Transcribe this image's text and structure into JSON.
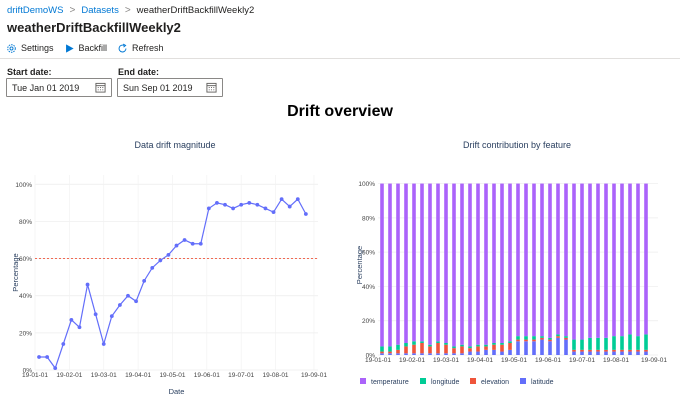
{
  "breadcrumb": {
    "items": [
      "driftDemoWS",
      "Datasets",
      "weatherDriftBackfillWeekly2"
    ],
    "separator": ">"
  },
  "page": {
    "title": "weatherDriftBackfillWeekly2"
  },
  "toolbar": {
    "settings_label": "Settings",
    "backfill_label": "Backfill",
    "refresh_label": "Refresh"
  },
  "filters": {
    "start_label": "Start date:",
    "start_value": "Tue Jan 01 2019",
    "end_label": "End date:",
    "end_value": "Sun Sep 01 2019"
  },
  "section": {
    "title": "Drift overview"
  },
  "colors": {
    "accent": "#0078d4",
    "line": "#636efa",
    "threshold": "#ef553b",
    "temperature": "#ab63fa",
    "longitude": "#00cc96",
    "elevation": "#ef553b",
    "latitude": "#636efa"
  },
  "chart_data": [
    {
      "type": "line",
      "title": "Data drift magnitude",
      "xlabel": "Date",
      "ylabel": "Percentage",
      "yticks": [
        "0%",
        "20%",
        "40%",
        "60%",
        "80%",
        "100%"
      ],
      "xticks": [
        "19-01-01",
        "19-02-01",
        "19-03-01",
        "19-04-01",
        "19-05-01",
        "19-06-01",
        "19-07-01",
        "19-08-01",
        "19-09-01"
      ],
      "ylim": [
        0,
        105
      ],
      "xlim": [
        0,
        35
      ],
      "threshold": 60,
      "grid": true,
      "series": [
        {
          "values": [
            7,
            7,
            1,
            14,
            27,
            23,
            46,
            30,
            14,
            29,
            35,
            40,
            37,
            48,
            55,
            59,
            62,
            67,
            70,
            68,
            68,
            87,
            90,
            89,
            87,
            89,
            90,
            89,
            87,
            85,
            92,
            88,
            92,
            84
          ]
        }
      ]
    },
    {
      "type": "bar",
      "stacked": true,
      "title": "Drift contribution by feature",
      "ylabel": "Percentage",
      "yticks": [
        "0%",
        "20%",
        "40%",
        "60%",
        "80%",
        "100%"
      ],
      "xticks": [
        "19-01-01",
        "19-02-01",
        "19-03-01",
        "19-04-01",
        "19-05-01",
        "19-06-01",
        "19-07-01",
        "19-08-01",
        "19-09-01"
      ],
      "ylim": [
        0,
        105
      ],
      "xlim": [
        0,
        35
      ],
      "legend_position": "bottom",
      "series": [
        {
          "name": "latitude",
          "values": [
            1,
            1,
            1,
            1,
            1,
            1,
            1,
            1,
            1,
            1,
            1,
            2,
            2,
            3,
            3,
            2,
            3,
            8,
            8,
            8,
            9,
            8,
            10,
            9,
            2,
            2,
            2,
            2,
            2,
            2,
            2,
            2,
            2,
            2
          ]
        },
        {
          "name": "elevation",
          "values": [
            1,
            1,
            2,
            4,
            5,
            6,
            4,
            6,
            5,
            3,
            4,
            2,
            3,
            2,
            3,
            4,
            4,
            1,
            1,
            1,
            1,
            1,
            1,
            1,
            1,
            1,
            1,
            1,
            1,
            1,
            1,
            1,
            1,
            1
          ]
        },
        {
          "name": "longitude",
          "values": [
            3,
            3,
            3,
            2,
            2,
            1,
            1,
            1,
            1,
            1,
            1,
            1,
            1,
            1,
            1,
            1,
            1,
            2,
            2,
            2,
            1,
            1,
            1,
            1,
            6,
            6,
            7,
            7,
            7,
            8,
            8,
            9,
            8,
            9
          ]
        },
        {
          "name": "temperature",
          "values": [
            95,
            95,
            94,
            93,
            92,
            92,
            94,
            92,
            93,
            95,
            94,
            95,
            94,
            94,
            93,
            93,
            92,
            89,
            89,
            89,
            89,
            90,
            88,
            89,
            91,
            91,
            90,
            90,
            90,
            89,
            89,
            88,
            89,
            88
          ]
        }
      ]
    }
  ]
}
